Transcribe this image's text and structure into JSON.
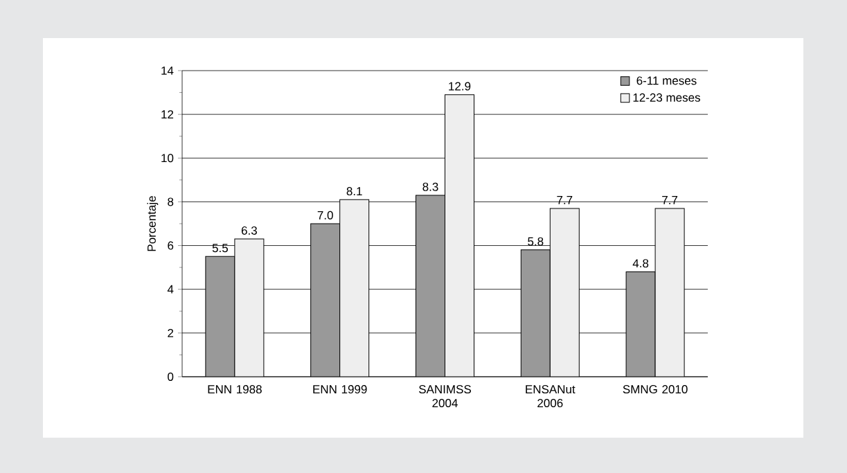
{
  "chart_data": {
    "type": "bar",
    "ylabel": "Porcentaje",
    "categories": [
      "ENN 1988",
      "ENN 1999",
      "SANIMSS 2004",
      "ENSANut 2006",
      "SMNG 2010"
    ],
    "series": [
      {
        "name": "6-11 meses",
        "color": "#999999",
        "values": [
          5.5,
          7.0,
          8.3,
          5.8,
          4.8
        ],
        "value_labels": [
          "5.5",
          "7.0",
          "8.3",
          "5.8",
          "4.8"
        ]
      },
      {
        "name": "12-23 meses",
        "color": "#eeeeee",
        "values": [
          6.3,
          8.1,
          12.9,
          7.7,
          7.7
        ],
        "value_labels": [
          "6.3",
          "8.1",
          "12.9",
          "7.7",
          "7.7"
        ]
      }
    ],
    "ylim": [
      0,
      14
    ],
    "yticks": [
      0,
      2,
      4,
      6,
      8,
      10,
      12,
      14
    ],
    "grid": "y",
    "legend": "top right"
  }
}
